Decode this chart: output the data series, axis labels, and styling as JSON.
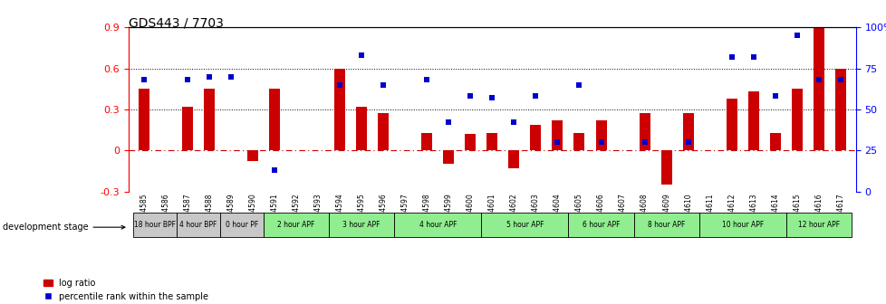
{
  "title": "GDS443 / 7703",
  "samples": [
    "GSM4585",
    "GSM4586",
    "GSM4587",
    "GSM4588",
    "GSM4589",
    "GSM4590",
    "GSM4591",
    "GSM4592",
    "GSM4593",
    "GSM4594",
    "GSM4595",
    "GSM4596",
    "GSM4597",
    "GSM4598",
    "GSM4599",
    "GSM4600",
    "GSM4601",
    "GSM4602",
    "GSM4603",
    "GSM4604",
    "GSM4605",
    "GSM4606",
    "GSM4607",
    "GSM4608",
    "GSM4609",
    "GSM4610",
    "GSM4611",
    "GSM4612",
    "GSM4613",
    "GSM4614",
    "GSM4615",
    "GSM4616",
    "GSM4617"
  ],
  "log_ratio": [
    0.45,
    0.0,
    0.32,
    0.45,
    0.0,
    -0.08,
    0.45,
    0.0,
    0.0,
    0.6,
    0.32,
    0.27,
    0.0,
    0.13,
    -0.1,
    0.12,
    0.13,
    -0.13,
    0.19,
    0.22,
    0.13,
    0.22,
    0.0,
    0.27,
    -0.25,
    0.27,
    0.0,
    0.38,
    0.43,
    0.13,
    0.45,
    0.9,
    0.6
  ],
  "percentile": [
    68,
    0,
    68,
    70,
    70,
    0,
    13,
    0,
    0,
    65,
    83,
    65,
    0,
    68,
    42,
    58,
    57,
    42,
    58,
    30,
    65,
    30,
    0,
    30,
    0,
    30,
    0,
    82,
    82,
    58,
    95,
    68,
    68
  ],
  "stages": [
    {
      "label": "18 hour BPF",
      "start": 0,
      "end": 2,
      "color": "#c8c8c8"
    },
    {
      "label": "4 hour BPF",
      "start": 2,
      "end": 4,
      "color": "#c8c8c8"
    },
    {
      "label": "0 hour PF",
      "start": 4,
      "end": 6,
      "color": "#c8c8c8"
    },
    {
      "label": "2 hour APF",
      "start": 6,
      "end": 9,
      "color": "#90ee90"
    },
    {
      "label": "3 hour APF",
      "start": 9,
      "end": 12,
      "color": "#90ee90"
    },
    {
      "label": "4 hour APF",
      "start": 12,
      "end": 16,
      "color": "#90ee90"
    },
    {
      "label": "5 hour APF",
      "start": 16,
      "end": 20,
      "color": "#90ee90"
    },
    {
      "label": "6 hour APF",
      "start": 20,
      "end": 23,
      "color": "#90ee90"
    },
    {
      "label": "8 hour APF",
      "start": 23,
      "end": 26,
      "color": "#90ee90"
    },
    {
      "label": "10 hour APF",
      "start": 26,
      "end": 30,
      "color": "#90ee90"
    },
    {
      "label": "12 hour APF",
      "start": 30,
      "end": 33,
      "color": "#90ee90"
    }
  ],
  "ylim_left": [
    -0.3,
    0.9
  ],
  "ylim_right": [
    0,
    100
  ],
  "yticks_left": [
    -0.3,
    0.0,
    0.3,
    0.6,
    0.9
  ],
  "yticks_right": [
    0,
    25,
    50,
    75,
    100
  ],
  "bar_color": "#cc0000",
  "dot_color": "#0000cc",
  "background_color": "#ffffff"
}
